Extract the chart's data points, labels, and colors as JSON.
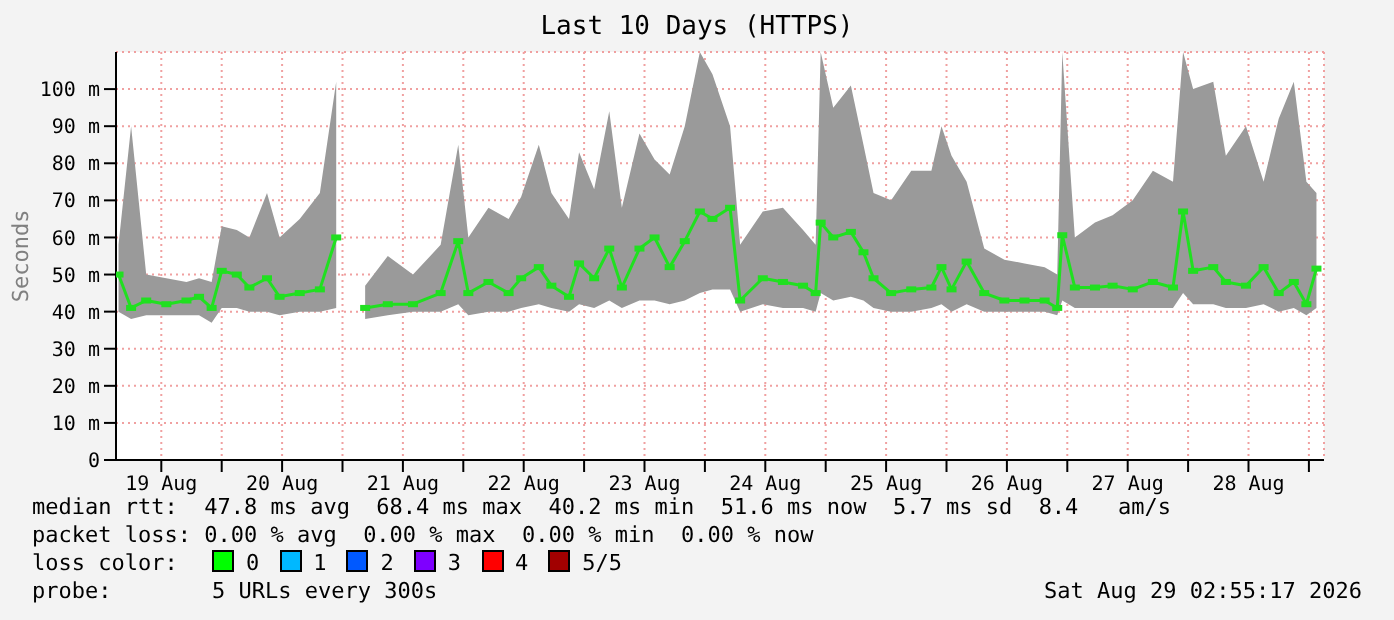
{
  "chart_data": {
    "type": "line",
    "title": "Last 10 Days (HTTPS)",
    "ylabel": "Seconds",
    "xlim": [
      "2026-08-19T03:00",
      "2026-08-29T03:00"
    ],
    "xticks": [
      {
        "value": "2026-08-19T12:00",
        "label": "19 Aug"
      },
      {
        "value": "2026-08-20T00:00",
        "label": null
      },
      {
        "value": "2026-08-20T12:00",
        "label": "20 Aug"
      },
      {
        "value": "2026-08-21T00:00",
        "label": null
      },
      {
        "value": "2026-08-21T12:00",
        "label": "21 Aug"
      },
      {
        "value": "2026-08-22T00:00",
        "label": null
      },
      {
        "value": "2026-08-22T12:00",
        "label": "22 Aug"
      },
      {
        "value": "2026-08-23T00:00",
        "label": null
      },
      {
        "value": "2026-08-23T12:00",
        "label": "23 Aug"
      },
      {
        "value": "2026-08-24T00:00",
        "label": null
      },
      {
        "value": "2026-08-24T12:00",
        "label": "24 Aug"
      },
      {
        "value": "2026-08-25T00:00",
        "label": null
      },
      {
        "value": "2026-08-25T12:00",
        "label": "25 Aug"
      },
      {
        "value": "2026-08-26T00:00",
        "label": null
      },
      {
        "value": "2026-08-26T12:00",
        "label": "26 Aug"
      },
      {
        "value": "2026-08-27T00:00",
        "label": null
      },
      {
        "value": "2026-08-27T12:00",
        "label": "27 Aug"
      },
      {
        "value": "2026-08-28T00:00",
        "label": null
      },
      {
        "value": "2026-08-28T12:00",
        "label": "28 Aug"
      },
      {
        "value": "2026-08-29T00:00",
        "label": null
      }
    ],
    "ylim": [
      0,
      110
    ],
    "yticks": [
      0,
      {
        "value": 10,
        "label": "10 m"
      },
      {
        "value": 20,
        "label": "20 m"
      },
      {
        "value": 30,
        "label": "30 m"
      },
      {
        "value": 40,
        "label": "40 m"
      },
      {
        "value": 50,
        "label": "50 m"
      },
      {
        "value": 60,
        "label": "60 m"
      },
      {
        "value": 70,
        "label": "70 m"
      },
      {
        "value": 80,
        "label": "80 m"
      },
      {
        "value": 90,
        "label": "90 m"
      },
      {
        "value": 100,
        "label": "100 m"
      }
    ],
    "grid": true,
    "marker": "square",
    "line_style": "solid",
    "x": [
      "2026-08-19T03:30",
      "2026-08-19T06:00",
      "2026-08-19T09:00",
      "2026-08-19T13:00",
      "2026-08-19T17:00",
      "2026-08-19T19:30",
      "2026-08-19T22:00",
      "2026-08-20T00:00",
      "2026-08-20T03:00",
      "2026-08-20T05:30",
      "2026-08-20T09:00",
      "2026-08-20T11:30",
      "2026-08-20T15:30",
      "2026-08-20T19:30",
      "2026-08-20T22:45",
      "2026-08-21T01:00",
      "2026-08-21T04:30",
      "2026-08-21T09:00",
      "2026-08-21T14:00",
      "2026-08-21T19:30",
      "2026-08-21T23:00",
      "2026-08-22T01:00",
      "2026-08-22T05:00",
      "2026-08-22T09:00",
      "2026-08-22T11:30",
      "2026-08-22T15:00",
      "2026-08-22T17:30",
      "2026-08-22T21:00",
      "2026-08-22T23:00",
      "2026-08-23T02:00",
      "2026-08-23T05:00",
      "2026-08-23T07:30",
      "2026-08-23T11:00",
      "2026-08-23T14:00",
      "2026-08-23T17:00",
      "2026-08-23T20:00",
      "2026-08-23T23:00",
      "2026-08-24T01:30",
      "2026-08-24T05:00",
      "2026-08-24T07:00",
      "2026-08-24T11:30",
      "2026-08-24T15:30",
      "2026-08-24T19:30",
      "2026-08-24T22:00",
      "2026-08-24T23:00",
      "2026-08-25T01:30",
      "2026-08-25T05:00",
      "2026-08-25T07:30",
      "2026-08-25T09:30",
      "2026-08-25T13:00",
      "2026-08-25T17:00",
      "2026-08-25T21:00",
      "2026-08-25T23:00",
      "2026-08-26T01:00",
      "2026-08-26T04:00",
      "2026-08-26T07:30",
      "2026-08-26T11:30",
      "2026-08-26T15:30",
      "2026-08-26T19:30",
      "2026-08-26T22:00",
      "2026-08-26T23:00",
      "2026-08-27T01:30",
      "2026-08-27T05:30",
      "2026-08-27T09:00",
      "2026-08-27T13:00",
      "2026-08-27T17:00",
      "2026-08-27T21:00",
      "2026-08-27T23:00",
      "2026-08-28T01:00",
      "2026-08-28T05:00",
      "2026-08-28T07:30",
      "2026-08-28T11:30",
      "2026-08-28T15:00",
      "2026-08-28T18:00",
      "2026-08-28T21:00",
      "2026-08-28T23:30",
      "2026-08-29T01:30"
    ],
    "series": [
      {
        "color": "#20e020",
        "values": [
          50,
          41,
          43,
          42,
          43,
          44,
          41,
          51,
          50,
          46.5,
          49,
          44,
          45,
          46,
          60,
          null,
          41,
          42,
          42,
          45,
          59,
          45,
          48,
          45,
          49,
          52,
          47,
          44,
          53,
          49,
          57,
          46.5,
          57,
          60,
          52,
          59,
          67,
          65,
          68,
          43,
          49,
          48,
          47,
          45,
          64,
          60,
          61.5,
          56,
          49,
          45,
          46,
          46.5,
          52,
          46,
          53.5,
          45,
          43,
          43,
          43,
          41,
          60.6,
          46.5,
          46.5,
          47,
          46,
          48,
          46.5,
          67,
          51,
          52,
          48,
          47,
          52,
          45,
          48,
          42,
          51.6
        ],
        "lower": [
          40,
          38,
          39,
          39,
          39,
          39,
          37,
          41,
          41,
          40,
          40,
          39,
          40,
          40,
          41,
          null,
          38,
          39,
          40,
          40,
          42,
          39,
          40,
          40,
          41,
          42,
          41,
          40,
          42,
          41,
          43,
          41,
          43,
          43,
          42,
          43,
          45,
          46,
          46,
          40,
          42,
          41,
          41,
          40,
          45,
          43,
          44,
          43,
          41,
          40,
          40,
          41,
          42,
          40,
          42,
          40,
          40,
          40,
          40,
          39,
          43,
          41,
          41,
          41,
          41,
          41,
          41,
          45,
          42,
          42,
          41,
          41,
          42,
          40,
          41,
          39,
          41
        ],
        "upper": [
          58,
          90,
          50,
          49,
          48,
          49,
          48,
          63,
          62,
          60,
          72,
          60,
          65,
          72,
          102,
          null,
          47,
          55,
          50,
          58,
          85,
          60,
          68,
          65,
          71,
          85,
          72,
          65,
          83,
          73,
          94,
          68,
          88,
          81,
          77,
          90,
          110,
          104,
          90,
          58,
          67,
          68,
          62,
          58,
          110,
          95,
          101,
          85,
          72,
          70,
          78,
          78,
          90,
          82,
          75,
          57,
          54,
          53,
          52,
          50,
          110,
          60,
          64,
          66,
          70,
          78,
          75,
          110,
          100,
          102,
          82,
          90,
          75,
          92,
          102,
          75,
          72
        ]
      }
    ],
    "annotations": [
      "median rtt:  47.8 ms avg  68.4 ms max  40.2 ms min  51.6 ms now  5.7 ms sd  8.4   am/s",
      "packet loss: 0.00 % avg  0.00 % max  0.00 % min  0.00 % now",
      "loss color:",
      "0",
      "1",
      "2",
      "3",
      "4",
      "5/5",
      "probe:",
      "5 URLs every 300s",
      "Sat Aug 29 02:55:17 2026"
    ]
  }
}
